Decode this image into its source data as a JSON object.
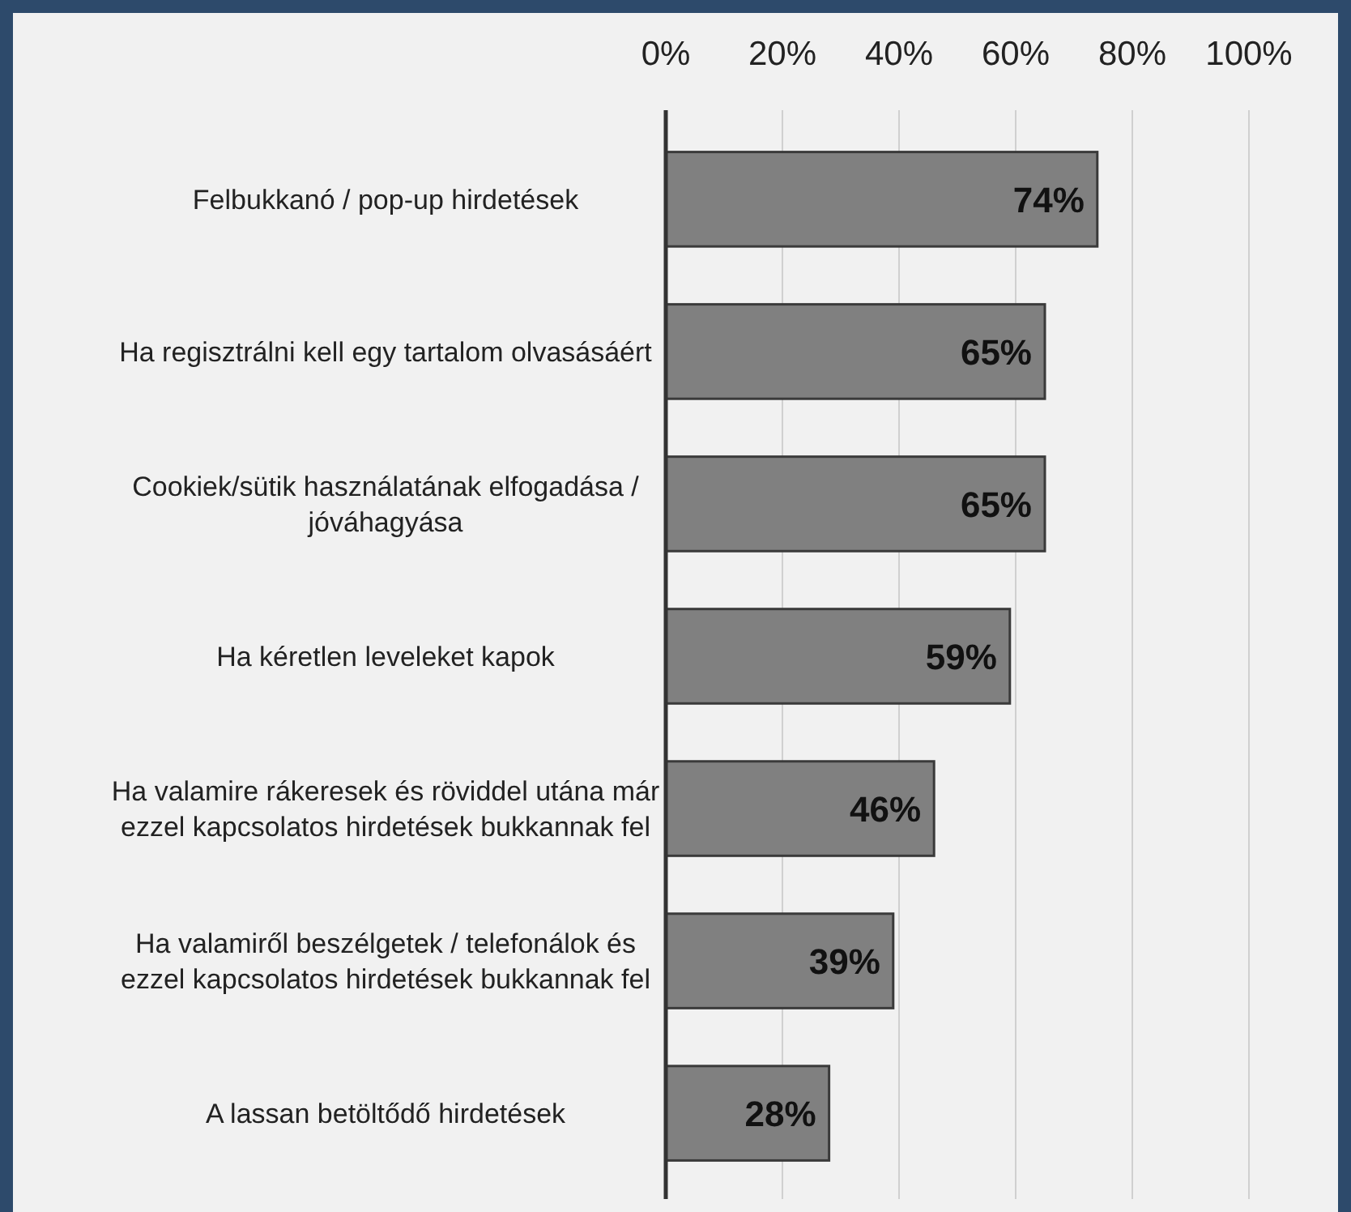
{
  "chart_data": {
    "type": "bar",
    "orientation": "horizontal",
    "categories": [
      "Felbukkanó / pop-up hirdetések",
      "Ha regisztrálni kell egy tartalom olvasásáért",
      "Cookiek/sütik használatának elfogadása / jóváhagyása",
      "Ha kéretlen leveleket kapok",
      "Ha valamire rákeresek és röviddel utána már ezzel kapcsolatos hirdetések bukkannak fel",
      "Ha valamiről beszélgetek / telefonálok és ezzel kapcsolatos hirdetések bukkannak fel",
      "A lassan betöltődő hirdetések"
    ],
    "values": [
      74,
      65,
      65,
      59,
      46,
      39,
      28
    ],
    "value_labels": [
      "74%",
      "65%",
      "65%",
      "59%",
      "46%",
      "39%",
      "28%"
    ],
    "color": "#808080",
    "xlim": [
      0,
      100
    ],
    "xticks": [
      {
        "value": 0,
        "label": "0%"
      },
      {
        "value": 20,
        "label": "20%"
      },
      {
        "value": 40,
        "label": "40%"
      },
      {
        "value": 60,
        "label": "60%"
      },
      {
        "value": 80,
        "label": "80%"
      },
      {
        "value": 100,
        "label": "100%"
      }
    ],
    "grid": "x"
  }
}
